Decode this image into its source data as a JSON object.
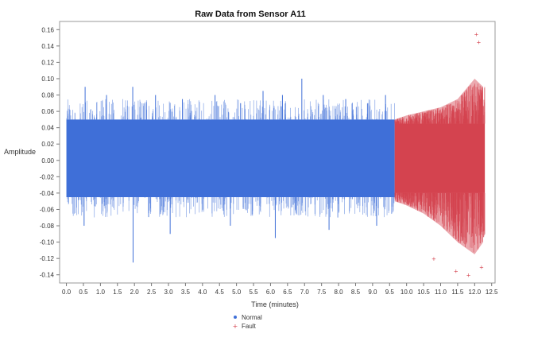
{
  "chart_data": {
    "type": "scatter",
    "title": "Raw Data from Sensor A11",
    "xlabel": "Time (minutes)",
    "ylabel": "Amplitude",
    "xlim": [
      -0.2,
      12.6
    ],
    "ylim": [
      -0.15,
      0.17
    ],
    "xticks": [
      0.0,
      0.5,
      1.0,
      1.5,
      2.0,
      2.5,
      3.0,
      3.5,
      4.0,
      4.5,
      5.0,
      5.5,
      6.0,
      6.5,
      7.0,
      7.5,
      8.0,
      8.5,
      9.0,
      9.5,
      10.0,
      10.5,
      11.0,
      11.5,
      12.0,
      12.5
    ],
    "xtick_labels": [
      "0.0",
      "0.5",
      "1.0",
      "1.5",
      "2.0",
      "2.5",
      "3.0",
      "3.5",
      "4.0",
      "4.5",
      "5.0",
      "5.5",
      "6.0",
      "6.5",
      "7.0",
      "7.5",
      "8.0",
      "8.5",
      "9.0",
      "9.5",
      "10.0",
      "10.5",
      "11.0",
      "11.5",
      "12.0",
      "12.5"
    ],
    "yticks": [
      -0.14,
      -0.12,
      -0.1,
      -0.08,
      -0.06,
      -0.04,
      -0.02,
      0.0,
      0.02,
      0.04,
      0.06,
      0.08,
      0.1,
      0.12,
      0.14,
      0.16
    ],
    "ytick_labels": [
      "-0.14",
      "-0.12",
      "-0.10",
      "-0.08",
      "-0.06",
      "-0.04",
      "-0.02",
      "0.00",
      "0.02",
      "0.04",
      "0.06",
      "0.08",
      "0.10",
      "0.12",
      "0.14",
      "0.16"
    ],
    "grid": false,
    "legend_position": "bottom-center",
    "series": [
      {
        "name": "Normal",
        "color": "#3f6fd8",
        "x_range": [
          0.0,
          9.65
        ],
        "band": [
          -0.045,
          0.05
        ],
        "typical_max_abs": 0.07,
        "x": [
          0.55,
          1.18,
          1.95,
          2.62,
          3.41,
          4.37,
          5.12,
          5.78,
          6.35,
          6.92,
          7.55,
          8.21,
          8.86,
          9.38,
          0.52,
          1.96,
          3.05,
          4.82,
          6.14,
          7.72,
          9.12
        ],
        "y": [
          0.09,
          0.08,
          0.09,
          0.08,
          0.075,
          0.08,
          0.07,
          0.085,
          0.08,
          0.1,
          0.08,
          0.075,
          0.07,
          0.08,
          -0.08,
          -0.125,
          -0.09,
          -0.08,
          -0.095,
          -0.085,
          -0.08
        ]
      },
      {
        "name": "Fault",
        "color": "#d4434f",
        "x_range": [
          9.65,
          12.3
        ],
        "band": [
          -0.04,
          0.045
        ],
        "x": [
          9.65,
          10.0,
          10.5,
          11.0,
          11.5,
          12.0,
          12.25
        ],
        "y_upper": [
          0.05,
          0.055,
          0.06,
          0.065,
          0.075,
          0.1,
          0.09
        ],
        "y_lower": [
          -0.05,
          -0.055,
          -0.065,
          -0.08,
          -0.1,
          -0.115,
          -0.1
        ],
        "outliers_x": [
          12.05,
          12.12,
          11.82,
          10.8,
          11.45,
          12.2
        ],
        "outliers_y": [
          0.155,
          0.145,
          -0.14,
          -0.12,
          -0.135,
          -0.13
        ]
      }
    ]
  }
}
